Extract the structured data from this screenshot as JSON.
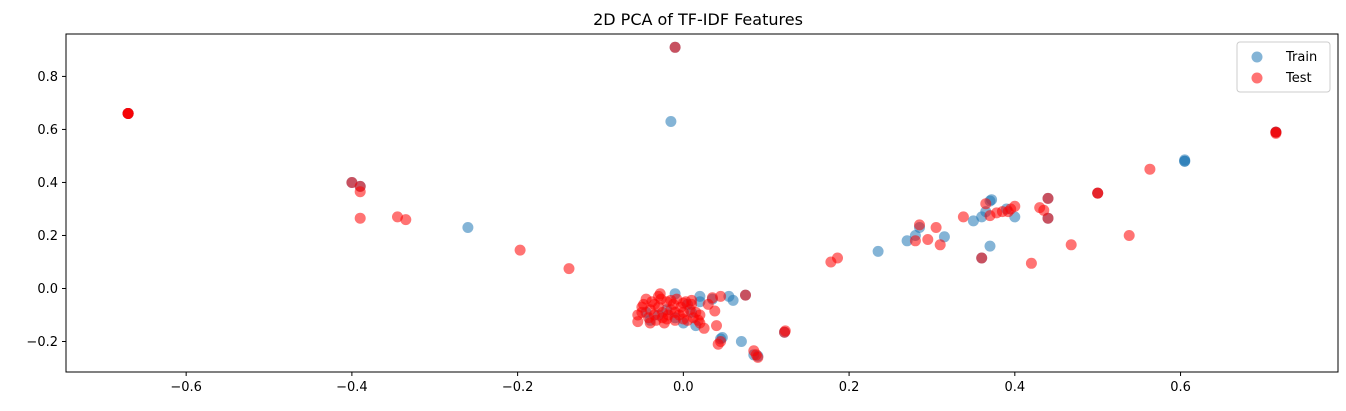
{
  "chart_data": {
    "type": "scatter",
    "title": "2D PCA of TF-IDF Features",
    "xlabel": "",
    "ylabel": "",
    "xlim": [
      -0.745,
      0.79
    ],
    "ylim": [
      -0.315,
      0.96
    ],
    "xticks": [
      -0.6,
      -0.4,
      -0.2,
      0.0,
      0.2,
      0.4,
      0.6
    ],
    "xtick_labels": [
      "−0.6",
      "−0.4",
      "−0.2",
      "0.0",
      "0.2",
      "0.4",
      "0.6"
    ],
    "yticks": [
      -0.2,
      0.0,
      0.2,
      0.4,
      0.6,
      0.8
    ],
    "ytick_labels": [
      "−0.2",
      "0.0",
      "0.2",
      "0.4",
      "0.6",
      "0.8"
    ],
    "grid": false,
    "legend_position": "top-right",
    "series": [
      {
        "name": "Train",
        "color": "#1f77b4",
        "alpha": 0.55,
        "points": [
          [
            -0.67,
            0.66
          ],
          [
            -0.67,
            0.66
          ],
          [
            -0.67,
            0.66
          ],
          [
            -0.015,
            0.63
          ],
          [
            -0.26,
            0.23
          ],
          [
            -0.4,
            0.4
          ],
          [
            -0.39,
            0.385
          ],
          [
            -0.01,
            0.91
          ],
          [
            0.235,
            0.14
          ],
          [
            0.27,
            0.18
          ],
          [
            0.285,
            0.23
          ],
          [
            0.28,
            0.2
          ],
          [
            0.315,
            0.195
          ],
          [
            0.35,
            0.255
          ],
          [
            0.36,
            0.27
          ],
          [
            0.365,
            0.29
          ],
          [
            0.37,
            0.33
          ],
          [
            0.372,
            0.335
          ],
          [
            0.37,
            0.16
          ],
          [
            0.39,
            0.3
          ],
          [
            0.4,
            0.27
          ],
          [
            0.44,
            0.34
          ],
          [
            0.44,
            0.265
          ],
          [
            0.36,
            0.115
          ],
          [
            0.5,
            0.36
          ],
          [
            0.605,
            0.48
          ],
          [
            0.605,
            0.48
          ],
          [
            0.605,
            0.485
          ],
          [
            0.715,
            0.59
          ],
          [
            0.715,
            0.59
          ],
          [
            -0.01,
            -0.02
          ],
          [
            0.02,
            -0.03
          ],
          [
            0.035,
            -0.04
          ],
          [
            0.045,
            -0.19
          ],
          [
            0.047,
            -0.185
          ],
          [
            0.055,
            -0.03
          ],
          [
            0.06,
            -0.045
          ],
          [
            0.07,
            -0.2
          ],
          [
            0.075,
            -0.025
          ],
          [
            0.085,
            -0.25
          ],
          [
            0.09,
            -0.255
          ],
          [
            0.122,
            -0.165
          ],
          [
            -0.04,
            -0.12
          ],
          [
            -0.03,
            -0.1
          ],
          [
            -0.02,
            -0.08
          ],
          [
            -0.01,
            -0.11
          ],
          [
            0.0,
            -0.13
          ],
          [
            0.005,
            -0.06
          ],
          [
            0.01,
            -0.09
          ],
          [
            0.015,
            -0.14
          ],
          [
            -0.045,
            -0.09
          ],
          [
            0.02,
            -0.05
          ]
        ]
      },
      {
        "name": "Test",
        "color": "#ff0000",
        "alpha": 0.55,
        "points": [
          [
            -0.67,
            0.66
          ],
          [
            -0.67,
            0.66
          ],
          [
            -0.67,
            0.66
          ],
          [
            -0.67,
            0.66
          ],
          [
            -0.01,
            0.91
          ],
          [
            -0.4,
            0.4
          ],
          [
            -0.39,
            0.385
          ],
          [
            -0.39,
            0.365
          ],
          [
            -0.39,
            0.265
          ],
          [
            -0.345,
            0.27
          ],
          [
            -0.335,
            0.26
          ],
          [
            -0.197,
            0.145
          ],
          [
            -0.138,
            0.075
          ],
          [
            0.178,
            0.1
          ],
          [
            0.186,
            0.115
          ],
          [
            0.28,
            0.18
          ],
          [
            0.285,
            0.24
          ],
          [
            0.295,
            0.185
          ],
          [
            0.305,
            0.23
          ],
          [
            0.31,
            0.165
          ],
          [
            0.338,
            0.27
          ],
          [
            0.36,
            0.115
          ],
          [
            0.365,
            0.32
          ],
          [
            0.37,
            0.275
          ],
          [
            0.378,
            0.285
          ],
          [
            0.385,
            0.29
          ],
          [
            0.392,
            0.29
          ],
          [
            0.395,
            0.3
          ],
          [
            0.4,
            0.31
          ],
          [
            0.42,
            0.095
          ],
          [
            0.43,
            0.305
          ],
          [
            0.435,
            0.295
          ],
          [
            0.44,
            0.34
          ],
          [
            0.44,
            0.265
          ],
          [
            0.468,
            0.165
          ],
          [
            0.5,
            0.36
          ],
          [
            0.5,
            0.36
          ],
          [
            0.538,
            0.2
          ],
          [
            0.563,
            0.45
          ],
          [
            0.715,
            0.59
          ],
          [
            0.715,
            0.59
          ],
          [
            0.715,
            0.585
          ],
          [
            -0.055,
            -0.1
          ],
          [
            -0.055,
            -0.125
          ],
          [
            -0.05,
            -0.09
          ],
          [
            -0.048,
            -0.06
          ],
          [
            -0.045,
            -0.04
          ],
          [
            -0.042,
            -0.11
          ],
          [
            -0.04,
            -0.08
          ],
          [
            -0.038,
            -0.05
          ],
          [
            -0.035,
            -0.1
          ],
          [
            -0.033,
            -0.12
          ],
          [
            -0.03,
            -0.07
          ],
          [
            -0.028,
            -0.02
          ],
          [
            -0.027,
            -0.04
          ],
          [
            -0.025,
            -0.09
          ],
          [
            -0.023,
            -0.13
          ],
          [
            -0.02,
            -0.05
          ],
          [
            -0.018,
            -0.1
          ],
          [
            -0.015,
            -0.08
          ],
          [
            -0.012,
            -0.06
          ],
          [
            -0.01,
            -0.12
          ],
          [
            -0.008,
            -0.04
          ],
          [
            -0.005,
            -0.1
          ],
          [
            -0.003,
            -0.07
          ],
          [
            0.0,
            -0.09
          ],
          [
            0.003,
            -0.05
          ],
          [
            0.005,
            -0.12
          ],
          [
            0.008,
            -0.08
          ],
          [
            0.01,
            -0.06
          ],
          [
            0.012,
            -0.11
          ],
          [
            0.015,
            -0.09
          ],
          [
            0.018,
            -0.12
          ],
          [
            0.02,
            -0.13
          ],
          [
            -0.03,
            -0.03
          ],
          [
            -0.02,
            -0.115
          ],
          [
            -0.015,
            -0.045
          ],
          [
            0.0,
            -0.055
          ],
          [
            0.025,
            -0.15
          ],
          [
            0.03,
            -0.06
          ],
          [
            0.035,
            -0.035
          ],
          [
            0.038,
            -0.085
          ],
          [
            0.04,
            -0.14
          ],
          [
            0.042,
            -0.21
          ],
          [
            0.045,
            -0.2
          ],
          [
            0.045,
            -0.03
          ],
          [
            0.075,
            -0.025
          ],
          [
            0.085,
            -0.235
          ],
          [
            0.088,
            -0.25
          ],
          [
            0.09,
            -0.26
          ],
          [
            0.122,
            -0.165
          ],
          [
            0.123,
            -0.16
          ],
          [
            -0.05,
            -0.07
          ],
          [
            -0.04,
            -0.13
          ],
          [
            -0.035,
            -0.06
          ],
          [
            -0.025,
            -0.11
          ],
          [
            -0.01,
            -0.09
          ],
          [
            0.0,
            -0.115
          ],
          [
            0.01,
            -0.045
          ],
          [
            0.02,
            -0.1
          ]
        ]
      }
    ]
  }
}
